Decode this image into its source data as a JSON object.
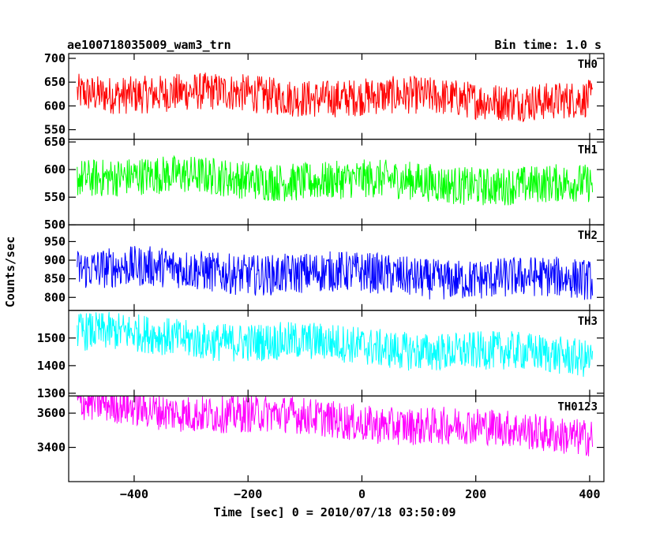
{
  "chart_data": {
    "type": "line",
    "title_left": "ae100718035009_wam3_trn",
    "title_right": "Bin time: 1.0 s",
    "xlabel": "Time [sec] 0 = 2010/07/18 03:50:09",
    "ylabel": "Counts/sec",
    "xlim": [
      -515,
      425
    ],
    "x_range_data": [
      -500,
      405
    ],
    "x_ticks": [
      -400,
      -200,
      0,
      200,
      400
    ],
    "x_tick_labels": [
      "−400",
      "−200",
      "0",
      "200",
      "400"
    ],
    "grid": false,
    "panels": [
      {
        "name": "TH0",
        "color": "#ff0000",
        "ylim": [
          530,
          710
        ],
        "ticks": [
          550,
          600,
          650,
          700
        ],
        "tick_labels": [
          "550",
          "600",
          "650",
          "700"
        ],
        "mean_start": 630,
        "mean_end": 610,
        "noise_amplitude": 40
      },
      {
        "name": "TH1",
        "color": "#00ff00",
        "ylim": [
          500,
          655
        ],
        "ticks": [
          500,
          550,
          600,
          650
        ],
        "tick_labels": [
          "500",
          "550",
          "600",
          "650"
        ],
        "mean_start": 590,
        "mean_end": 570,
        "noise_amplitude": 35
      },
      {
        "name": "TH2",
        "color": "#0000ff",
        "ylim": [
          765,
          995
        ],
        "ticks": [
          800,
          850,
          900,
          950
        ],
        "tick_labels": [
          "800",
          "850",
          "900",
          "950"
        ],
        "mean_start": 880,
        "mean_end": 845,
        "noise_amplitude": 55
      },
      {
        "name": "TH3",
        "color": "#00ffff",
        "ylim": [
          1290,
          1600
        ],
        "ticks": [
          1300,
          1400,
          1500
        ],
        "tick_labels": [
          "1300",
          "1400",
          "1500"
        ],
        "mean_start": 1520,
        "mean_end": 1430,
        "noise_amplitude": 70
      },
      {
        "name": "TH0123",
        "color": "#ff00ff",
        "ylim": [
          3200,
          3700
        ],
        "ticks": [
          3400,
          3600
        ],
        "tick_labels": [
          "3400",
          "3600"
        ],
        "mean_start": 3650,
        "mean_end": 3470,
        "noise_amplitude": 110
      }
    ]
  }
}
